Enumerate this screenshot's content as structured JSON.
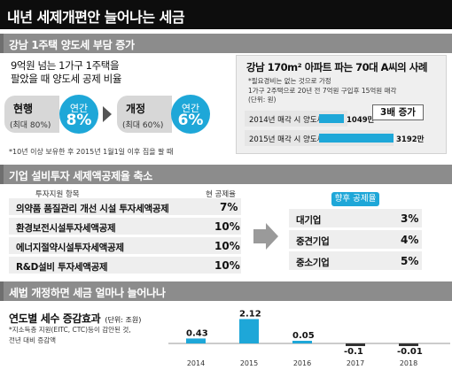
{
  "title": "내년 세제개편안 늘어나는 세금",
  "section1": {
    "title": "강남 1주택 양도세 부담 증가",
    "desc_line1": "9억원 넘는 1가구 1주택을",
    "desc_line2": "팔았을 때 양도세 공제 비율",
    "current_label": "현행",
    "current_sub": "(최대 80%)",
    "current_circle_top": "연간",
    "current_circle_value": "8%",
    "revised_label": "개정",
    "revised_sub": "(최대 60%)",
    "revised_circle_top": "연간",
    "revised_circle_value": "6%",
    "footnote": "*10년 이상 보유한 후 2015년 1월1일 이후 집을 팔 때",
    "case": {
      "title": "강남 170m² 아파트 파는 70대 A씨의 사례",
      "assumption1": "*필요경비는 없는 것으로 가정",
      "assumption2": "1가구 2주택으로 20년 전 7억원 구입후 15억원 매각",
      "unit": "(단위: 원)",
      "row1_label": "2014년 매각 시 양도세",
      "row1_value": "1049만",
      "row2_label": "2015년 매각 시 양도세",
      "row2_value": "3192만",
      "increase_tag": "3배 증가"
    }
  },
  "section2": {
    "title": "기업 설비투자 세제액공제율 축소",
    "col_item": "투자지원 항목",
    "col_rate": "현 공제율",
    "future_label": "향후 공제율",
    "items": [
      {
        "label": "의약품 품질관리 개선 시설 투자세액공제",
        "value": "7%"
      },
      {
        "label": "환경보전시설투자세액공제",
        "value": "10%"
      },
      {
        "label": "에너지절약시설투자세액공제",
        "value": "10%"
      },
      {
        "label": "R&D설비 투자세액공제",
        "value": "10%"
      }
    ],
    "future": [
      {
        "label": "대기업",
        "value": "3%"
      },
      {
        "label": "중견기업",
        "value": "4%"
      },
      {
        "label": "중소기업",
        "value": "5%"
      }
    ]
  },
  "section3": {
    "title": "세법 개정하면 세금 얼마나 늘어나나",
    "chart_title": "연도별 세수 증감효과",
    "chart_unit": "(단위: 조원)",
    "chart_note1": "*지소득층 지원(EITC, CTC)등이 감안된 것,",
    "chart_note2": "전년 대비 증감액"
  },
  "colors": {
    "accent": "#1ea7d8",
    "title_bg": "#0d0d0d",
    "section_bg": "#8c8c8c"
  },
  "chart_data": {
    "type": "bar",
    "categories": [
      "2014",
      "2015",
      "2016",
      "2017",
      "2018"
    ],
    "values": [
      0.43,
      2.12,
      0.05,
      -0.1,
      -0.01
    ],
    "labels": [
      "0.43",
      "2.12",
      "0.05",
      "-0.1",
      "-0.01"
    ],
    "title": "연도별 세수 증감효과",
    "ylabel": "",
    "xlabel": ""
  }
}
